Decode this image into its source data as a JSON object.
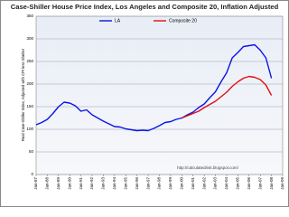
{
  "chart_data": {
    "type": "line",
    "title": "Case-Shiller House Price Index, Los Angeles and Composite 20, Inflation Adjusted",
    "y_label": "Real Case-Shiller Index, Adjusted with CPI less Shelter",
    "annotation": "http://calculatedrisk.blogspot.com/",
    "categories": [
      "Jan-87",
      null,
      "Jan-88",
      null,
      "Jan-89",
      null,
      "Jan-90",
      null,
      "Jan-91",
      null,
      "Jan-92",
      null,
      "Jan-93",
      null,
      "Jan-94",
      null,
      "Jan-95",
      null,
      "Jan-96",
      null,
      "Jan-97",
      null,
      "Jan-98",
      null,
      "Jan-99",
      null,
      "Jan-00",
      null,
      "Jan-01",
      null,
      "Jan-02",
      null,
      "Jan-03",
      null,
      "Jan-04",
      null,
      "Jan-05",
      null,
      "Jan-06",
      null,
      "Jan-07",
      null,
      "Jan-08",
      null,
      "Jan-09"
    ],
    "series": [
      {
        "name": "LA",
        "color": "#0a14e6",
        "values": [
          110,
          115,
          122,
          135,
          150,
          160,
          158,
          152,
          140,
          143,
          132,
          125,
          118,
          112,
          106,
          105,
          101,
          99,
          97,
          98,
          97,
          102,
          108,
          115,
          117,
          122,
          125,
          132,
          138,
          148,
          156,
          170,
          183,
          205,
          225,
          258,
          270,
          283,
          285,
          287,
          275,
          258,
          213,
          null,
          null
        ]
      },
      {
        "name": "Composite 20",
        "color": "#e01010",
        "values": [
          null,
          null,
          null,
          null,
          null,
          null,
          null,
          null,
          null,
          null,
          null,
          null,
          null,
          null,
          null,
          null,
          null,
          null,
          null,
          null,
          null,
          null,
          null,
          null,
          null,
          null,
          125,
          130,
          135,
          140,
          148,
          155,
          162,
          172,
          182,
          195,
          205,
          213,
          217,
          215,
          210,
          198,
          175,
          null,
          null
        ]
      }
    ],
    "ylim": [
      0,
      350
    ],
    "yticks": [
      0,
      50,
      100,
      150,
      200,
      250,
      300,
      350
    ],
    "grid": true
  }
}
